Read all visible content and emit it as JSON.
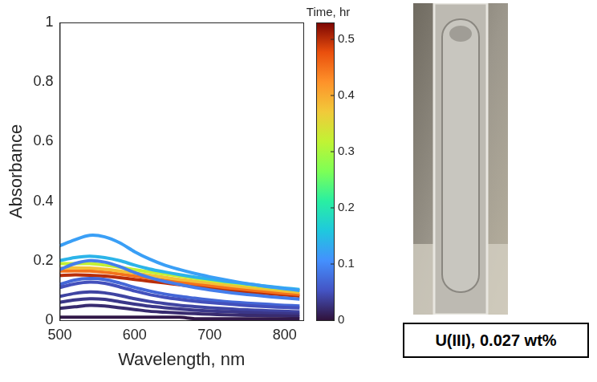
{
  "chart_data": {
    "type": "line",
    "x_label": "Wavelength, nm",
    "y_label": "Absorbance",
    "x": [
      500,
      520,
      540,
      560,
      580,
      600,
      620,
      640,
      660,
      680,
      700,
      720,
      740,
      760,
      780,
      800,
      820
    ],
    "xlim": [
      500,
      825
    ],
    "xticks": [
      500,
      600,
      700,
      800
    ],
    "ylim": [
      0,
      1
    ],
    "yticks": [
      0,
      0.2,
      0.4,
      0.6,
      0.8,
      1
    ],
    "grid": false,
    "series": [
      {
        "time": 0.005,
        "values": [
          0.01,
          0.01,
          0.01,
          0.01,
          0.01,
          0.01,
          0.01,
          0.01,
          0.01,
          0.005,
          0.005,
          0.005,
          0.005,
          0.005,
          0.005,
          0.005,
          0.005
        ]
      },
      {
        "time": 0.02,
        "values": [
          0.04,
          0.045,
          0.05,
          0.048,
          0.042,
          0.036,
          0.03,
          0.027,
          0.024,
          0.022,
          0.02,
          0.018,
          0.017,
          0.016,
          0.015,
          0.014,
          0.013
        ]
      },
      {
        "time": 0.03,
        "values": [
          0.06,
          0.068,
          0.072,
          0.07,
          0.062,
          0.054,
          0.047,
          0.042,
          0.038,
          0.034,
          0.031,
          0.029,
          0.027,
          0.025,
          0.023,
          0.022,
          0.02
        ]
      },
      {
        "time": 0.04,
        "values": [
          0.08,
          0.09,
          0.095,
          0.092,
          0.083,
          0.072,
          0.063,
          0.056,
          0.05,
          0.046,
          0.042,
          0.039,
          0.036,
          0.034,
          0.032,
          0.03,
          0.028
        ]
      },
      {
        "time": 0.05,
        "values": [
          0.11,
          0.122,
          0.128,
          0.124,
          0.112,
          0.098,
          0.086,
          0.077,
          0.07,
          0.064,
          0.059,
          0.055,
          0.051,
          0.048,
          0.045,
          0.043,
          0.041
        ]
      },
      {
        "time": 0.07,
        "values": [
          0.12,
          0.135,
          0.14,
          0.137,
          0.125,
          0.11,
          0.098,
          0.088,
          0.08,
          0.074,
          0.068,
          0.063,
          0.059,
          0.056,
          0.053,
          0.05,
          0.048
        ]
      },
      {
        "time": 0.09,
        "values": [
          0.17,
          0.19,
          0.2,
          0.195,
          0.18,
          0.16,
          0.143,
          0.13,
          0.12,
          0.11,
          0.102,
          0.095,
          0.089,
          0.084,
          0.079,
          0.075,
          0.071
        ]
      },
      {
        "time": 0.12,
        "values": [
          0.25,
          0.27,
          0.285,
          0.28,
          0.26,
          0.23,
          0.205,
          0.185,
          0.17,
          0.157,
          0.146,
          0.136,
          0.127,
          0.119,
          0.112,
          0.106,
          0.1
        ]
      },
      {
        "time": 0.14,
        "values": [
          0.2,
          0.21,
          0.215,
          0.21,
          0.2,
          0.185,
          0.172,
          0.162,
          0.153,
          0.145,
          0.138,
          0.131,
          0.125,
          0.119,
          0.113,
          0.108,
          0.103
        ]
      },
      {
        "time": 0.32,
        "values": [
          0.19,
          0.19,
          0.19,
          0.185,
          0.178,
          0.17,
          0.162,
          0.155,
          0.148,
          0.141,
          0.134,
          0.128,
          0.122,
          0.116,
          0.11,
          0.105,
          0.1
        ]
      },
      {
        "time": 0.38,
        "values": [
          0.175,
          0.176,
          0.175,
          0.171,
          0.165,
          0.158,
          0.151,
          0.144,
          0.137,
          0.131,
          0.125,
          0.119,
          0.113,
          0.108,
          0.103,
          0.098,
          0.093
        ]
      },
      {
        "time": 0.45,
        "values": [
          0.165,
          0.166,
          0.165,
          0.161,
          0.155,
          0.148,
          0.141,
          0.134,
          0.128,
          0.122,
          0.116,
          0.11,
          0.105,
          0.1,
          0.095,
          0.09,
          0.086
        ]
      },
      {
        "time": 0.5,
        "values": [
          0.15,
          0.152,
          0.151,
          0.148,
          0.143,
          0.137,
          0.131,
          0.125,
          0.119,
          0.113,
          0.108,
          0.103,
          0.098,
          0.093,
          0.089,
          0.085,
          0.081
        ]
      }
    ],
    "colorbar": {
      "label": "Time, hr",
      "range": [
        0,
        0.53
      ],
      "ticks": [
        0,
        0.1,
        0.2,
        0.3,
        0.4,
        0.5
      ]
    }
  },
  "annotation": "U(III), 0.027 wt%"
}
